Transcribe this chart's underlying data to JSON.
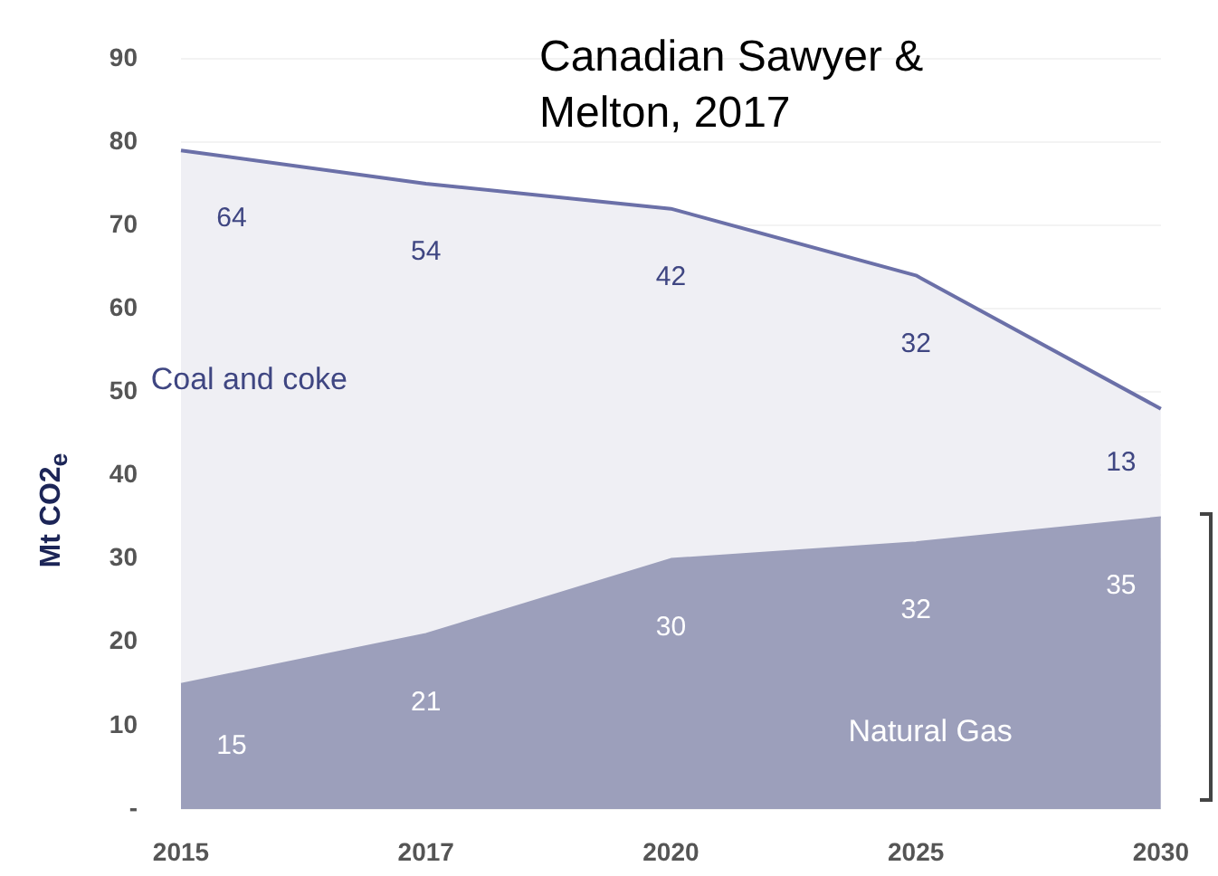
{
  "chart_data": {
    "type": "area",
    "stacked": true,
    "ylabel": "Mt CO2$_{e}$",
    "annotations": [
      "Canadian Sawyer & Melton, 2017"
    ],
    "categories": [
      "2015",
      "2017",
      "2020",
      "2025",
      "2030"
    ],
    "series": [
      {
        "name": "Natural Gas",
        "color": "#9c9fbb",
        "values": [
          15,
          21,
          30,
          32,
          35
        ]
      },
      {
        "name": "Coal and coke",
        "color": "#efeff4",
        "values": [
          64,
          54,
          42,
          32,
          13
        ]
      }
    ],
    "ylim": [
      0,
      90
    ],
    "yticks": [
      {
        "value": 0,
        "label": "-"
      },
      10,
      20,
      30,
      40,
      50,
      60,
      70,
      80,
      90
    ],
    "grid": "y",
    "legend": false,
    "data_labels": true
  }
}
